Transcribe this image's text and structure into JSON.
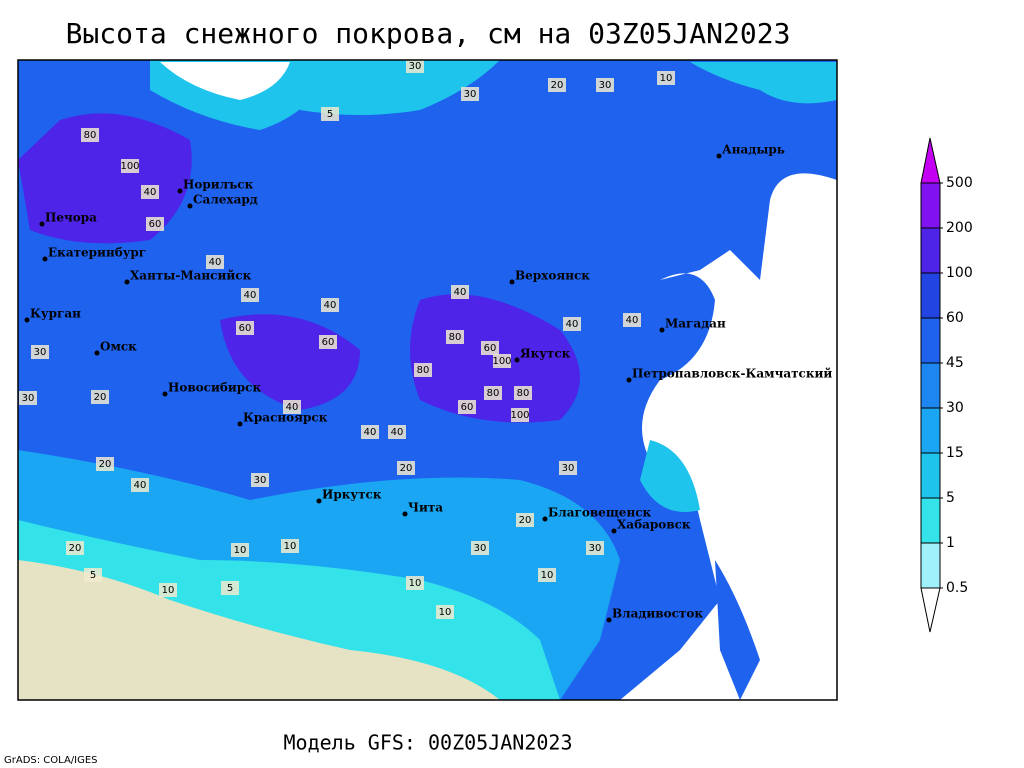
{
  "title": "Высота снежного покрова, см на 03Z05JAN2023",
  "footer": "Модель GFS: 00Z05JAN2023",
  "credit": "GrADS: COLA/IGES",
  "legend": {
    "levels": [
      0.5,
      1,
      5,
      15,
      30,
      45,
      60,
      100,
      200,
      500
    ],
    "colors": [
      "#ffffff",
      "#9ff0fa",
      "#34e2ea",
      "#1fc4ec",
      "#1aa6f2",
      "#1d86f0",
      "#1e62ee",
      "#2244e2",
      "#4e24e8",
      "#8012f0",
      "#c400f2"
    ]
  },
  "cities": [
    "Норилъск",
    "Салехард",
    "Печора",
    "Екатеринбург",
    "Ханты-Мансийск",
    "Курган",
    "Омск",
    "Новосибирск",
    "Красноярск",
    "Иркутск",
    "Чита",
    "Верхоянск",
    "Якутск",
    "Анадырь",
    "Магадан",
    "Петропавловск-Камчатский",
    "Благовещенск",
    "Хабаровск",
    "Владивосток"
  ],
  "contour_labels": [
    "30",
    "30",
    "20",
    "30",
    "10",
    "5",
    "80",
    "100",
    "40",
    "60",
    "40",
    "40",
    "40",
    "40",
    "60",
    "60",
    "60",
    "80",
    "100",
    "80",
    "40",
    "40",
    "30",
    "30",
    "20",
    "20",
    "10",
    "10",
    "5",
    "10",
    "10",
    "20",
    "30",
    "30",
    "10",
    "40",
    "40",
    "40",
    "100",
    "80",
    "80",
    "60",
    "30",
    "20",
    "10",
    "20",
    "40",
    "30",
    "5"
  ]
}
